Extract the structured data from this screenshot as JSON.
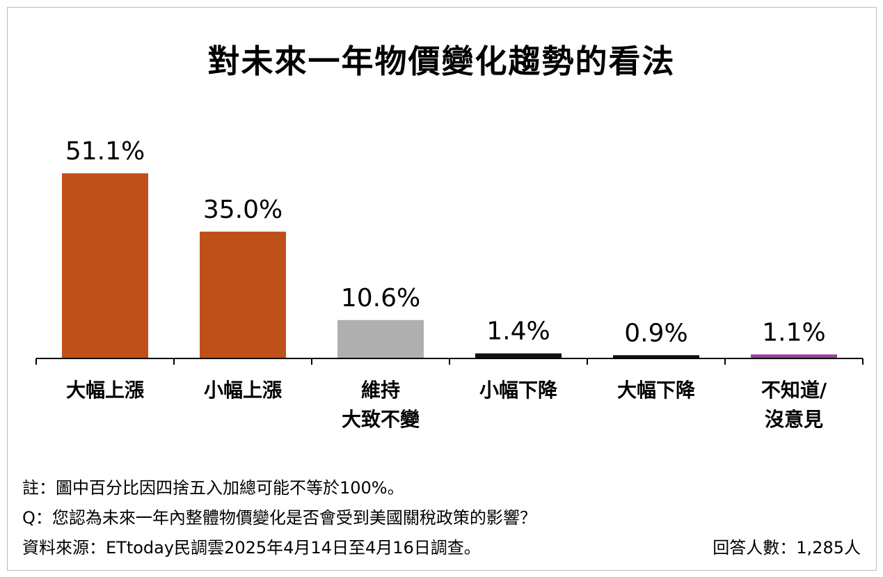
{
  "title": "對未來一年物價變化趨勢的看法",
  "chart_data": {
    "type": "bar",
    "title": "對未來一年物價變化趨勢的看法",
    "categories": [
      [
        "大幅上漲"
      ],
      [
        "小幅上漲"
      ],
      [
        "維持",
        "大致不變"
      ],
      [
        "小幅下降"
      ],
      [
        "大幅下降"
      ],
      [
        "不知道/",
        "沒意見"
      ]
    ],
    "values": [
      51.1,
      35.0,
      10.6,
      1.4,
      0.9,
      1.1
    ],
    "value_labels": [
      "51.1%",
      "35.0%",
      "10.6%",
      "1.4%",
      "0.9%",
      "1.1%"
    ],
    "colors": [
      "#C0501A",
      "#C0501A",
      "#AFAFAF",
      "#111111",
      "#111111",
      "#9B3FA0"
    ],
    "ylim": [
      0,
      51.1
    ],
    "grid": false,
    "legend": "none"
  },
  "notes": {
    "note": "註：圖中百分比因四捨五入加總可能不等於100%。",
    "question": "Q：您認為未來一年內整體物價變化是否會受到美國關稅政策的影響？",
    "source": "資料來源：ETtoday民調雲2025年4月14日至4月16日調查。",
    "respondents": "回答人數：1,285人"
  }
}
